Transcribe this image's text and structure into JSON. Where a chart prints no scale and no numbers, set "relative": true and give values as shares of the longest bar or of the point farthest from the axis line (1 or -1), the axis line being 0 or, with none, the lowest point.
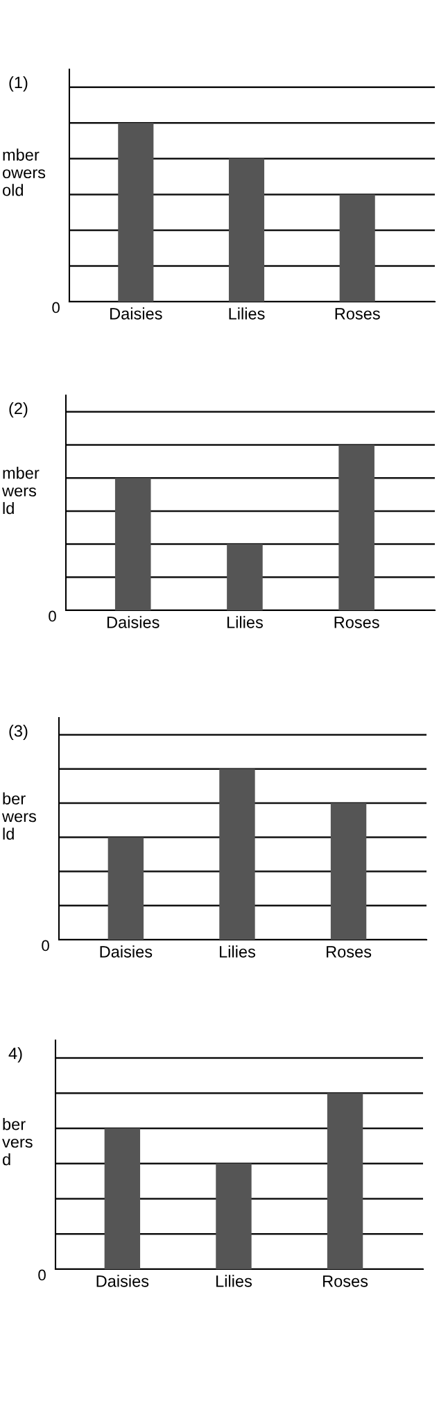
{
  "chart_data": [
    {
      "type": "bar",
      "title": "(1)",
      "ylabel": "mber\nowers\nold",
      "annotations": [
        "0"
      ],
      "categories": [
        "Daisies",
        "Lilies",
        "Roses"
      ],
      "values": [
        1,
        0.8,
        0.6
      ],
      "color": "#555555",
      "relative": true,
      "grid": "y"
    },
    {
      "type": "bar",
      "title": "(2)",
      "ylabel": "mber\nwers\nld",
      "annotations": [
        "0"
      ],
      "categories": [
        "Daisies",
        "Lilies",
        "Roses"
      ],
      "values": [
        0.8,
        0.4,
        1
      ],
      "color": "#555555",
      "relative": true,
      "grid": "y"
    },
    {
      "type": "bar",
      "title": "(3)",
      "ylabel": "ber\nwers\nld",
      "annotations": [
        "0"
      ],
      "categories": [
        "Daisies",
        "Lilies",
        "Roses"
      ],
      "values": [
        0.6,
        1,
        0.8
      ],
      "color": "#555555",
      "relative": true,
      "grid": "y"
    },
    {
      "type": "bar",
      "title": "4)",
      "ylabel": "ber\nvers\nd",
      "annotations": [
        "0"
      ],
      "categories": [
        "Daisies",
        "Lilies",
        "Roses"
      ],
      "values": [
        0.8,
        0.6,
        1
      ],
      "color": "#555555",
      "relative": true,
      "grid": "y"
    }
  ]
}
